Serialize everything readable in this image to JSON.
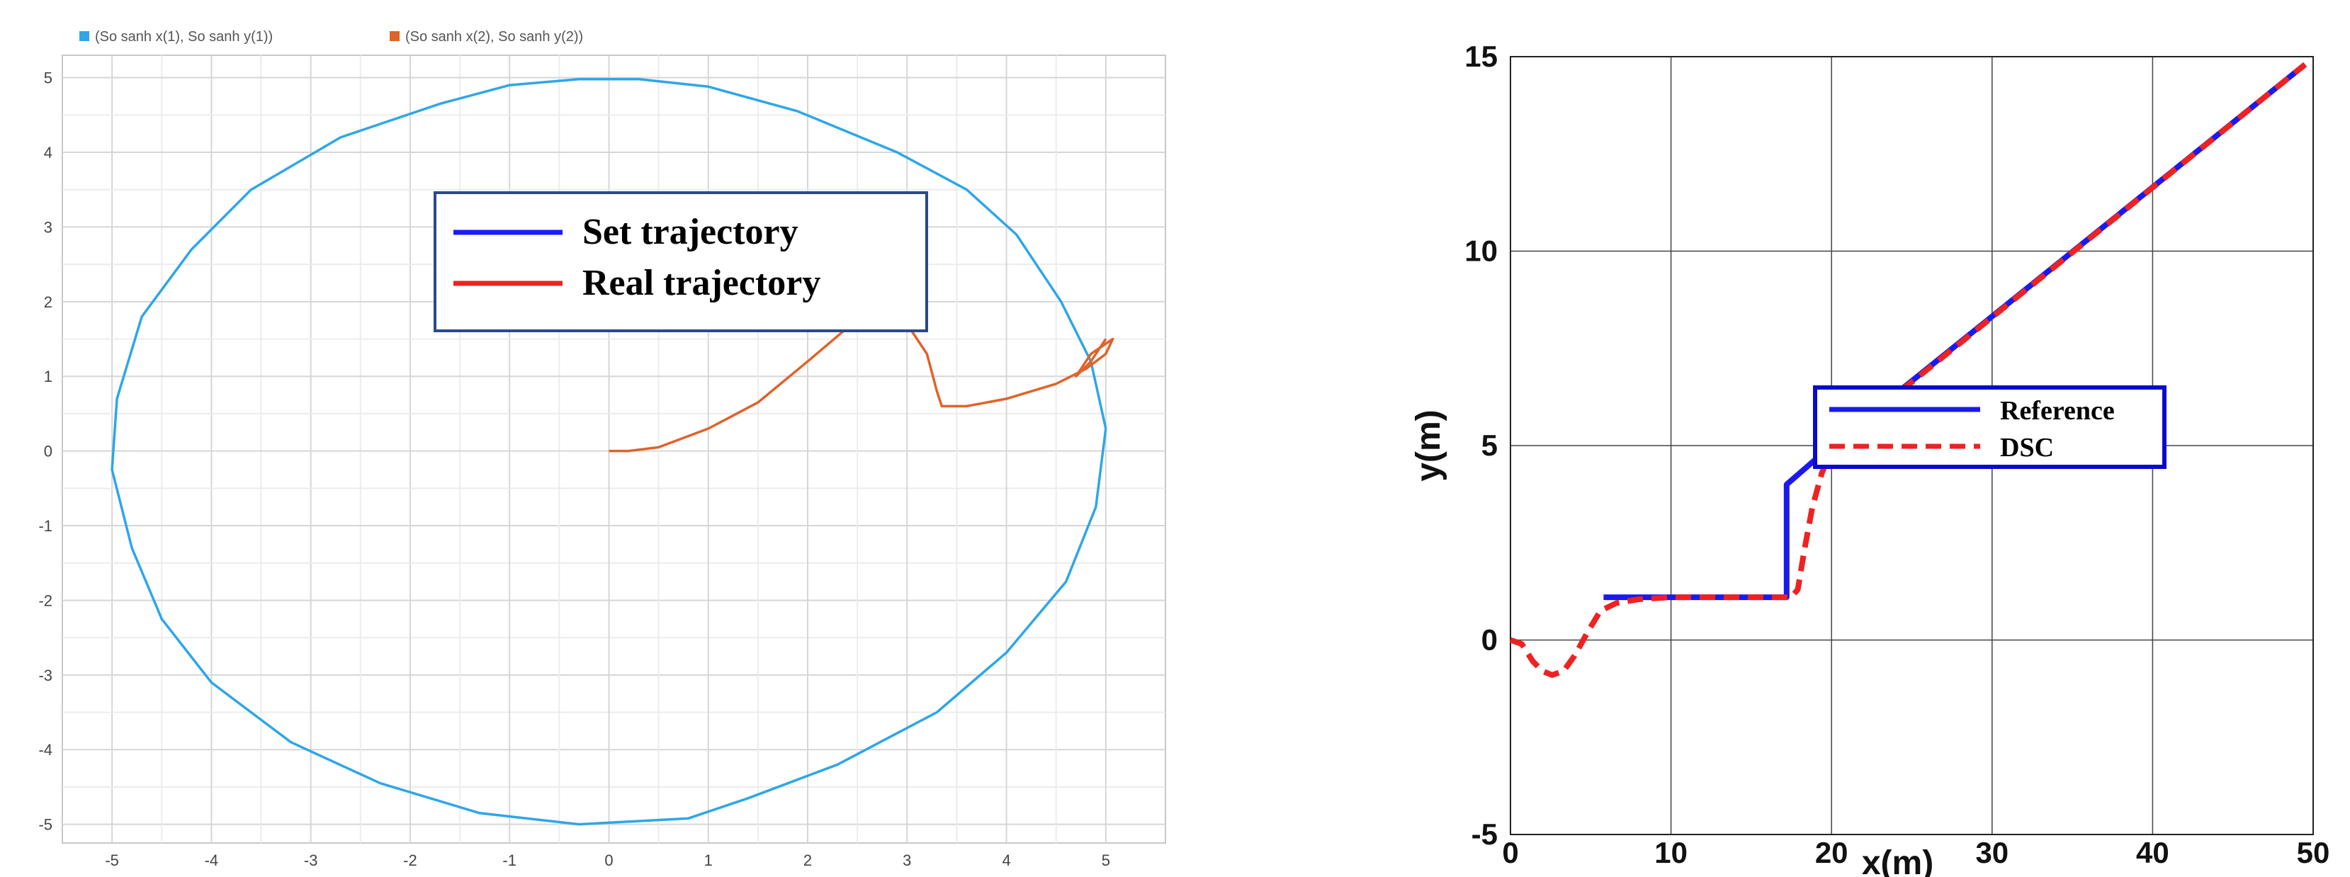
{
  "chart_data": [
    {
      "type": "line",
      "top_legend": [
        {
          "label": "(So sanh x(1), So sanh y(1))",
          "color": "#2ea6e8"
        },
        {
          "label": "(So sanh x(2), So sanh y(2))",
          "color": "#e0632a"
        }
      ],
      "inset_legend": [
        {
          "label": "Set trajectory",
          "color": "#1a1aff"
        },
        {
          "label": "Real trajectory",
          "color": "#ee2222"
        }
      ],
      "xlim": [
        -5.5,
        5.6
      ],
      "ylim": [
        -5.25,
        5.3
      ],
      "xticks": [
        "-5",
        "-4",
        "-3",
        "-2",
        "-1",
        "0",
        "1",
        "2",
        "3",
        "4",
        "5"
      ],
      "yticks": [
        "5",
        "4",
        "3",
        "2",
        "1",
        "0",
        "-1",
        "-2",
        "-3",
        "-4",
        "-5"
      ],
      "grid": true,
      "series": [
        {
          "color": "#2ea6e8",
          "points": [
            [
              5,
              0.3
            ],
            [
              4.9,
              -0.75
            ],
            [
              4.6,
              -1.75
            ],
            [
              4.0,
              -2.7
            ],
            [
              3.3,
              -3.5
            ],
            [
              2.3,
              -4.2
            ],
            [
              1.4,
              -4.65
            ],
            [
              0.8,
              -4.92
            ],
            [
              -0.3,
              -5.0
            ],
            [
              -1.3,
              -4.85
            ],
            [
              -2.3,
              -4.45
            ],
            [
              -3.2,
              -3.9
            ],
            [
              -4.0,
              -3.1
            ],
            [
              -4.5,
              -2.25
            ],
            [
              -4.8,
              -1.3
            ],
            [
              -5.0,
              -0.25
            ],
            [
              -4.95,
              0.7
            ],
            [
              -4.7,
              1.8
            ],
            [
              -4.2,
              2.7
            ],
            [
              -3.6,
              3.5
            ],
            [
              -2.7,
              4.2
            ],
            [
              -1.7,
              4.65
            ],
            [
              -1.0,
              4.9
            ],
            [
              -0.3,
              4.98
            ],
            [
              0.3,
              4.98
            ],
            [
              1.0,
              4.88
            ],
            [
              1.9,
              4.55
            ],
            [
              2.9,
              4.0
            ],
            [
              3.6,
              3.5
            ],
            [
              4.1,
              2.9
            ],
            [
              4.55,
              2.0
            ],
            [
              4.85,
              1.2
            ],
            [
              5.0,
              0.3
            ]
          ]
        },
        {
          "color": "#e0632a",
          "points": [
            [
              0,
              0
            ],
            [
              0.2,
              0.0
            ],
            [
              0.5,
              0.05
            ],
            [
              1.0,
              0.3
            ],
            [
              1.5,
              0.65
            ],
            [
              2.0,
              1.2
            ],
            [
              2.4,
              1.65
            ],
            [
              2.7,
              1.78
            ],
            [
              3.0,
              1.7
            ],
            [
              3.2,
              1.3
            ],
            [
              3.3,
              0.8
            ],
            [
              3.35,
              0.6
            ],
            [
              3.6,
              0.6
            ],
            [
              4.0,
              0.7
            ],
            [
              4.5,
              0.9
            ],
            [
              4.8,
              1.1
            ],
            [
              5.0,
              1.3
            ],
            [
              5.07,
              1.5
            ],
            [
              4.85,
              1.3
            ],
            [
              4.7,
              1.0
            ],
            [
              4.85,
              1.2
            ],
            [
              5.0,
              1.5
            ]
          ]
        }
      ]
    },
    {
      "type": "line",
      "xlabel": "x(m)",
      "ylabel": "y(m)",
      "xlim": [
        0,
        50
      ],
      "ylim": [
        -5,
        15
      ],
      "xticks": [
        "0",
        "10",
        "20",
        "30",
        "40",
        "50"
      ],
      "yticks": [
        "15",
        "10",
        "5",
        "0",
        "-5"
      ],
      "grid": true,
      "legend_position": "right",
      "series": [
        {
          "name": "Reference",
          "color": "#1a1aee",
          "dash": false,
          "points": [
            [
              5.8,
              1.1
            ],
            [
              17.2,
              1.1
            ],
            [
              17.2,
              4.0
            ],
            [
              20.0,
              5.0
            ],
            [
              49.5,
              14.8
            ]
          ]
        },
        {
          "name": "DSC",
          "color": "#ee2222",
          "dash": true,
          "points": [
            [
              0,
              0
            ],
            [
              0.7,
              -0.1
            ],
            [
              1.4,
              -0.55
            ],
            [
              2.0,
              -0.8
            ],
            [
              2.6,
              -0.9
            ],
            [
              3.3,
              -0.8
            ],
            [
              4.0,
              -0.4
            ],
            [
              4.8,
              0.2
            ],
            [
              5.6,
              0.75
            ],
            [
              6.6,
              0.95
            ],
            [
              8.0,
              1.05
            ],
            [
              10,
              1.1
            ],
            [
              17.5,
              1.1
            ],
            [
              17.9,
              1.3
            ],
            [
              18.3,
              2.3
            ],
            [
              18.8,
              3.4
            ],
            [
              19.4,
              4.3
            ],
            [
              20.0,
              4.85
            ],
            [
              21.0,
              5.3
            ],
            [
              49.5,
              14.8
            ]
          ]
        }
      ]
    }
  ]
}
